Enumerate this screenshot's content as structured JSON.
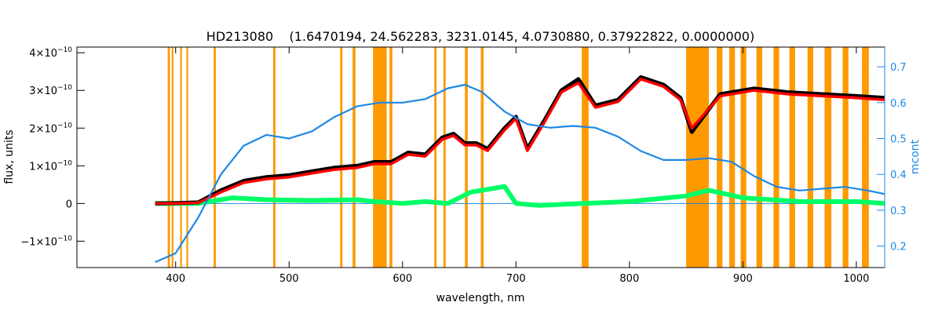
{
  "chart_data": {
    "type": "line",
    "title": "HD213080    (1.6470194, 24.562283, 3231.0145, 4.0730880, 0.37922822, 0.0000000)",
    "xlabel": "wavelength, nm",
    "ylabel_left": "flux, units",
    "ylabel_right": "mcont",
    "xlim": [
      313,
      1025
    ],
    "ylim_left": [
      -1.7e-10,
      4.15e-10
    ],
    "ylim_right": [
      0.14,
      0.755
    ],
    "x_ticks": [
      400,
      500,
      600,
      700,
      800,
      900,
      1000
    ],
    "y_left_ticks": [
      {
        "value": -1e-10,
        "mant": "−1×10",
        "exp": "−10"
      },
      {
        "value": 0,
        "mant": "0",
        "exp": ""
      },
      {
        "value": 1e-10,
        "mant": "1×10",
        "exp": "−10"
      },
      {
        "value": 2e-10,
        "mant": "2×10",
        "exp": "−10"
      },
      {
        "value": 3e-10,
        "mant": "3×10",
        "exp": "−10"
      },
      {
        "value": 4e-10,
        "mant": "4×10",
        "exp": "−10"
      }
    ],
    "y_right_ticks": [
      0.2,
      0.3,
      0.4,
      0.5,
      0.6,
      0.7
    ],
    "colors": {
      "observed": "#000000",
      "model": "#ff0000",
      "highlight": "#ffff00",
      "residual": "#00ff66",
      "mcont": "#1e88e5",
      "mask": "#ff9900",
      "axes": "#000000"
    },
    "mask_bands_nm": [
      [
        393,
        395
      ],
      [
        396.5,
        398
      ],
      [
        404,
        405.5
      ],
      [
        409.5,
        411
      ],
      [
        433.5,
        435.5
      ],
      [
        486,
        488
      ],
      [
        545,
        547
      ],
      [
        556,
        558.5
      ],
      [
        574,
        586
      ],
      [
        588.5,
        591
      ],
      [
        628,
        630
      ],
      [
        636,
        638
      ],
      [
        655,
        657.5
      ],
      [
        669,
        671.5
      ],
      [
        758,
        764
      ],
      [
        850,
        870
      ],
      [
        877,
        882
      ],
      [
        888,
        893
      ],
      [
        898,
        903
      ],
      [
        912,
        917
      ],
      [
        927,
        932
      ],
      [
        941,
        946
      ],
      [
        957,
        962
      ],
      [
        972,
        978
      ],
      [
        988,
        993
      ],
      [
        1005,
        1011
      ]
    ],
    "series": [
      {
        "role": "observed",
        "x": [
          382,
          400,
          420,
          440,
          460,
          480,
          500,
          520,
          540,
          560,
          575,
          590,
          605,
          620,
          635,
          645,
          655,
          665,
          675,
          690,
          700,
          710,
          725,
          740,
          755,
          770,
          790,
          810,
          830,
          845,
          855,
          880,
          910,
          940,
          970,
          1000,
          1025
        ],
        "y": [
          0.0,
          1e-12,
          3e-12,
          3.5e-11,
          6e-11,
          7e-11,
          7.5e-11,
          8.5e-11,
          9.5e-11,
          1e-10,
          1.1e-10,
          1.1e-10,
          1.35e-10,
          1.3e-10,
          1.75e-10,
          1.85e-10,
          1.6e-10,
          1.6e-10,
          1.45e-10,
          2e-10,
          2.3e-10,
          1.45e-10,
          2.2e-10,
          3e-10,
          3.3e-10,
          2.6e-10,
          2.75e-10,
          3.35e-10,
          3.15e-10,
          2.8e-10,
          1.9e-10,
          2.9e-10,
          3.05e-10,
          2.95e-10,
          2.9e-10,
          2.85e-10,
          2.8e-10
        ]
      },
      {
        "role": "model",
        "x": [
          382,
          400,
          420,
          440,
          460,
          480,
          500,
          520,
          540,
          560,
          575,
          590,
          605,
          620,
          635,
          645,
          655,
          665,
          675,
          690,
          700,
          710,
          725,
          740,
          755,
          770,
          790,
          810,
          830,
          845,
          855,
          880,
          910,
          940,
          970,
          1000,
          1025
        ],
        "y": [
          0.0,
          0.0,
          2e-12,
          3e-11,
          5.5e-11,
          6.5e-11,
          7e-11,
          8e-11,
          9e-11,
          9.5e-11,
          1.05e-10,
          1.05e-10,
          1.3e-10,
          1.25e-10,
          1.7e-10,
          1.8e-10,
          1.55e-10,
          1.55e-10,
          1.4e-10,
          1.95e-10,
          2.25e-10,
          1.4e-10,
          2.15e-10,
          2.95e-10,
          3.2e-10,
          2.55e-10,
          2.7e-10,
          3.3e-10,
          3.1e-10,
          2.75e-10,
          2e-10,
          2.85e-10,
          3e-10,
          2.9e-10,
          2.85e-10,
          2.8e-10,
          2.75e-10
        ]
      },
      {
        "role": "residual",
        "x": [
          382,
          420,
          450,
          480,
          520,
          560,
          575,
          600,
          620,
          640,
          660,
          690,
          700,
          720,
          760,
          800,
          850,
          870,
          900,
          950,
          1000,
          1025
        ],
        "y": [
          0.0,
          0.0,
          1.5e-11,
          1e-11,
          8e-12,
          1e-11,
          5e-12,
          0.0,
          5e-12,
          0.0,
          3e-11,
          4.5e-11,
          0.0,
          -5e-12,
          0.0,
          5e-12,
          2e-11,
          3.5e-11,
          1.5e-11,
          5e-12,
          5e-12,
          0.0
        ]
      },
      {
        "role": "mcont",
        "x": [
          382,
          400,
          420,
          440,
          460,
          480,
          500,
          520,
          540,
          560,
          580,
          600,
          620,
          640,
          655,
          670,
          690,
          710,
          730,
          750,
          770,
          790,
          810,
          830,
          850,
          870,
          890,
          910,
          930,
          950,
          970,
          990,
          1010,
          1025
        ],
        "y": [
          0.155,
          0.18,
          0.28,
          0.4,
          0.48,
          0.51,
          0.5,
          0.52,
          0.56,
          0.59,
          0.6,
          0.6,
          0.61,
          0.64,
          0.65,
          0.63,
          0.575,
          0.54,
          0.53,
          0.535,
          0.53,
          0.505,
          0.465,
          0.44,
          0.44,
          0.445,
          0.435,
          0.395,
          0.365,
          0.355,
          0.36,
          0.365,
          0.355,
          0.345
        ]
      }
    ]
  }
}
